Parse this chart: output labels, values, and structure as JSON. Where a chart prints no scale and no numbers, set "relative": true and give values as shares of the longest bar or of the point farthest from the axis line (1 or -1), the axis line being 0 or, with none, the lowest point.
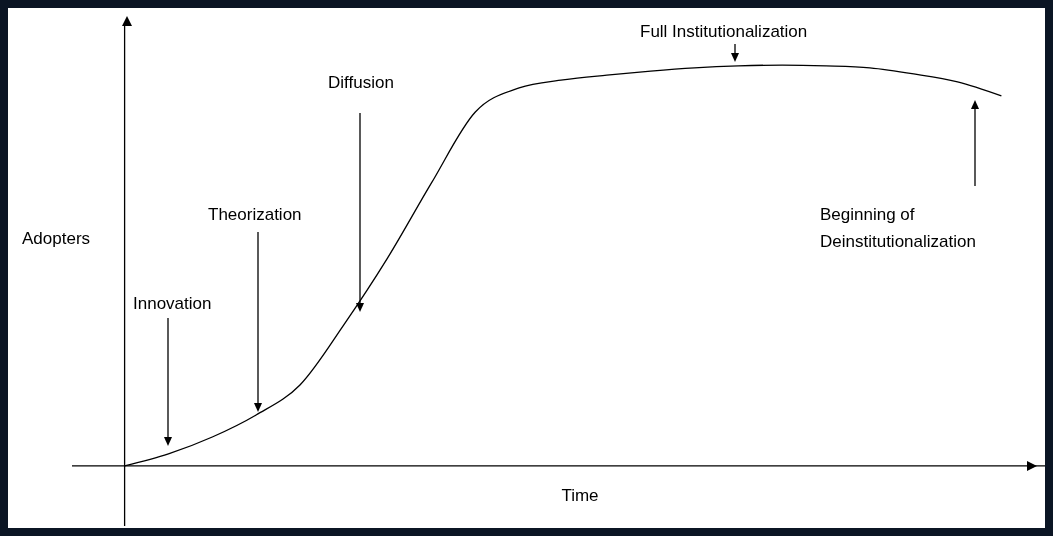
{
  "chart_data": {
    "type": "line",
    "relative": true,
    "xlabel": "Time",
    "ylabel": "Adopters",
    "categories": [
      null,
      null,
      null,
      null,
      null,
      null,
      null,
      null,
      null,
      null,
      null,
      null,
      null,
      null,
      null,
      null,
      null,
      null,
      null,
      null,
      null
    ],
    "series": [
      {
        "color": "#000000",
        "values": [
          0,
          0.03,
          0.072,
          0.127,
          0.202,
          0.352,
          0.519,
          0.706,
          0.883,
          0.943,
          0.963,
          0.975,
          0.985,
          0.993,
          0.998,
          1,
          0.998,
          0.993,
          0.978,
          0.958,
          0.923
        ]
      }
    ],
    "annotations": [
      "Innovation",
      "Theorization",
      "Diffusion",
      "Full Institutionalization",
      "Beginning of Deinstitutionalization"
    ]
  }
}
